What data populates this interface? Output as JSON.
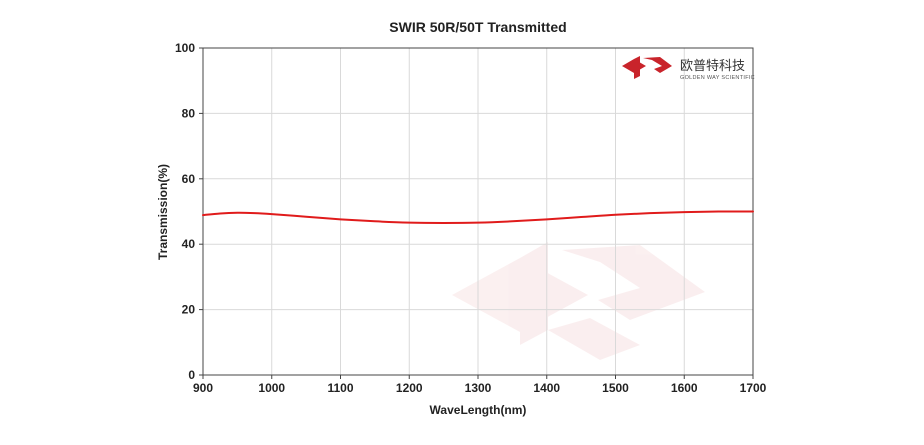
{
  "chart_data": {
    "type": "line",
    "title": "SWIR 50R/50T Transmitted",
    "xlabel": "WaveLength(nm)",
    "ylabel": "Transmission(%)",
    "xlim": [
      900,
      1700
    ],
    "ylim": [
      0,
      100
    ],
    "x_ticks": [
      900,
      1000,
      1100,
      1200,
      1300,
      1400,
      1500,
      1600,
      1700
    ],
    "y_ticks": [
      0,
      20,
      40,
      60,
      80,
      100
    ],
    "grid": true,
    "legend": "none",
    "series": [
      {
        "color": "#e01b1b",
        "x": [
          900,
          925,
          950,
          975,
          1000,
          1050,
          1100,
          1150,
          1200,
          1250,
          1300,
          1350,
          1400,
          1450,
          1500,
          1550,
          1600,
          1650,
          1700
        ],
        "y": [
          48.9,
          49.4,
          49.6,
          49.5,
          49.2,
          48.4,
          47.6,
          47.0,
          46.6,
          46.5,
          46.6,
          47.0,
          47.6,
          48.3,
          49.0,
          49.5,
          49.8,
          50.0,
          50.0
        ]
      }
    ]
  },
  "logo": {
    "name_cn": "欧普特科技",
    "name_en": "GOLDEN WAY SCIENTIFIC",
    "color": "#c9242b"
  }
}
